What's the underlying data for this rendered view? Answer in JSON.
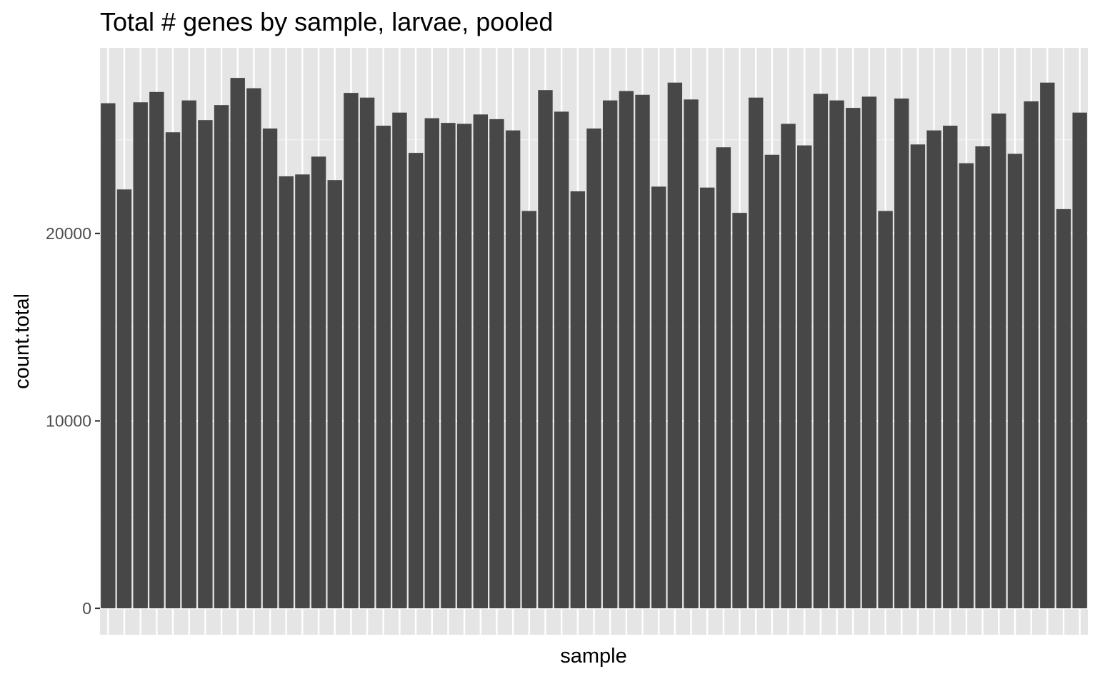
{
  "chart_data": {
    "type": "bar",
    "title": "Total # genes by sample, larvae, pooled",
    "xlabel": "sample",
    "ylabel": "count.total",
    "ylim": [
      0,
      29900
    ],
    "yticks": [
      0,
      10000,
      20000
    ],
    "ytick_labels": [
      "0",
      "10000",
      "20000"
    ],
    "x_tick_labels_visible": false,
    "grid": true,
    "legend": "none",
    "values": [
      26950,
      22350,
      27000,
      27550,
      25400,
      27100,
      26050,
      26850,
      28300,
      27750,
      25600,
      23050,
      23150,
      24100,
      22850,
      27500,
      27250,
      25750,
      26450,
      24300,
      26150,
      25900,
      25850,
      26350,
      26100,
      25500,
      21200,
      27650,
      26500,
      22250,
      25600,
      27100,
      27600,
      27400,
      22500,
      28050,
      27150,
      22450,
      24600,
      21100,
      27250,
      24200,
      25850,
      24700,
      27450,
      27100,
      26700,
      27300,
      21200,
      27200,
      24750,
      25500,
      25750,
      23750,
      24650,
      26400,
      24250,
      27050,
      28050,
      21300,
      26450
    ]
  },
  "colors": {
    "panel_background": "#e5e5e5",
    "grid_major": "#ffffff",
    "grid_minor": "#f2f2f2",
    "bar_fill": "#474747",
    "tick_label": "#4d4d4d",
    "tick_mark": "#333333",
    "text": "#000000"
  }
}
